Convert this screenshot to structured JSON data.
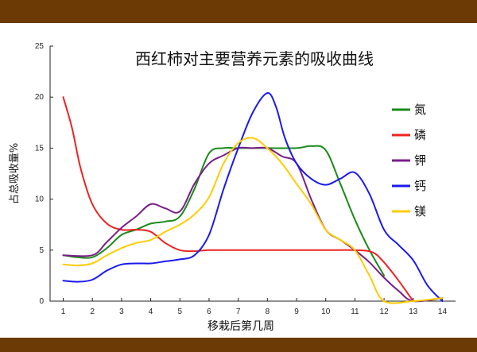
{
  "chart_data": {
    "type": "line",
    "title": "西红柿对主要营养元素的吸收曲线",
    "xlabel": "移栽后第几周",
    "ylabel": "占总吸收量%",
    "xlim": [
      0.55,
      14.45
    ],
    "ylim": [
      0,
      25
    ],
    "xticks": [
      1,
      2,
      3,
      4,
      5,
      6,
      7,
      8,
      9,
      10,
      11,
      12,
      13,
      14
    ],
    "yticks": [
      0,
      5,
      10,
      15,
      20,
      25
    ],
    "grid": false,
    "legend_position": "right",
    "series": [
      {
        "name": "氮",
        "color": "#1a8a1a",
        "points": [
          [
            1,
            4.5
          ],
          [
            1.5,
            4.3
          ],
          [
            2,
            4.3
          ],
          [
            2.5,
            5.2
          ],
          [
            3,
            6.5
          ],
          [
            3.5,
            7.0
          ],
          [
            4,
            7.6
          ],
          [
            4.5,
            7.8
          ],
          [
            5,
            8.3
          ],
          [
            5.5,
            11.0
          ],
          [
            6,
            14.5
          ],
          [
            6.5,
            15.0
          ],
          [
            7,
            15.0
          ],
          [
            8,
            15.0
          ],
          [
            9,
            15.0
          ],
          [
            9.5,
            15.2
          ],
          [
            10,
            14.8
          ],
          [
            10.5,
            11.5
          ],
          [
            11,
            8.0
          ],
          [
            11.5,
            5.0
          ],
          [
            12,
            2.5
          ]
        ]
      },
      {
        "name": "磷",
        "color": "#ee2222",
        "points": [
          [
            1,
            20
          ],
          [
            1.3,
            17
          ],
          [
            1.6,
            13
          ],
          [
            2,
            9.5
          ],
          [
            2.5,
            7.6
          ],
          [
            3,
            7.0
          ],
          [
            3.5,
            7.0
          ],
          [
            4,
            6.8
          ],
          [
            4.5,
            5.7
          ],
          [
            5,
            5.0
          ],
          [
            5.5,
            4.9
          ],
          [
            6,
            5.0
          ],
          [
            7,
            5.0
          ],
          [
            8,
            5.0
          ],
          [
            9,
            5.0
          ],
          [
            10,
            5.0
          ],
          [
            11,
            5.0
          ],
          [
            11.6,
            4.8
          ],
          [
            12,
            3.8
          ],
          [
            12.5,
            2.0
          ],
          [
            13,
            0
          ]
        ]
      },
      {
        "name": "钾",
        "color": "#7a1e8a",
        "points": [
          [
            1,
            4.5
          ],
          [
            2,
            4.5
          ],
          [
            2.5,
            5.8
          ],
          [
            3,
            7.2
          ],
          [
            3.5,
            8.3
          ],
          [
            4,
            9.5
          ],
          [
            4.5,
            9.1
          ],
          [
            5,
            8.8
          ],
          [
            5.5,
            11.5
          ],
          [
            6,
            13.5
          ],
          [
            6.5,
            14.3
          ],
          [
            7,
            15.0
          ],
          [
            7.5,
            15.0
          ],
          [
            8,
            15.0
          ],
          [
            8.5,
            14.2
          ],
          [
            9,
            13.5
          ],
          [
            9.5,
            10.0
          ],
          [
            10,
            7.0
          ],
          [
            10.5,
            6.0
          ],
          [
            11,
            5.0
          ],
          [
            11.5,
            3.8
          ],
          [
            12,
            2.3
          ],
          [
            12.5,
            1.0
          ],
          [
            13,
            0
          ],
          [
            14,
            0.3
          ]
        ]
      },
      {
        "name": "钙",
        "color": "#1a1aee",
        "points": [
          [
            1,
            2.0
          ],
          [
            1.5,
            1.9
          ],
          [
            2,
            2.1
          ],
          [
            2.5,
            3.0
          ],
          [
            3,
            3.6
          ],
          [
            3.5,
            3.7
          ],
          [
            4,
            3.7
          ],
          [
            4.5,
            3.9
          ],
          [
            5,
            4.1
          ],
          [
            5.5,
            4.5
          ],
          [
            6,
            6.5
          ],
          [
            6.5,
            11.0
          ],
          [
            7,
            15.0
          ],
          [
            7.5,
            18.5
          ],
          [
            8,
            20.4
          ],
          [
            8.3,
            19.0
          ],
          [
            8.6,
            16.0
          ],
          [
            9,
            13.5
          ],
          [
            9.5,
            12.0
          ],
          [
            10,
            11.4
          ],
          [
            10.5,
            12.0
          ],
          [
            11,
            12.6
          ],
          [
            11.5,
            10.5
          ],
          [
            12,
            7.0
          ],
          [
            12.5,
            5.5
          ],
          [
            13,
            4.0
          ],
          [
            13.5,
            1.5
          ],
          [
            14,
            0
          ]
        ]
      },
      {
        "name": "镁",
        "color": "#ffcc00",
        "points": [
          [
            1,
            3.6
          ],
          [
            1.5,
            3.5
          ],
          [
            2,
            3.7
          ],
          [
            2.5,
            4.5
          ],
          [
            3,
            5.2
          ],
          [
            3.5,
            5.7
          ],
          [
            4,
            6.0
          ],
          [
            4.5,
            6.8
          ],
          [
            5,
            7.5
          ],
          [
            5.5,
            8.5
          ],
          [
            6,
            10.2
          ],
          [
            6.5,
            13.5
          ],
          [
            7,
            15.5
          ],
          [
            7.5,
            16.0
          ],
          [
            8,
            15.0
          ],
          [
            8.5,
            13.5
          ],
          [
            9,
            11.5
          ],
          [
            9.5,
            9.5
          ],
          [
            10,
            7.0
          ],
          [
            10.5,
            6.0
          ],
          [
            11,
            5.0
          ],
          [
            11.5,
            2.5
          ],
          [
            12,
            0
          ],
          [
            13,
            0
          ],
          [
            14,
            0.3
          ]
        ]
      }
    ]
  }
}
